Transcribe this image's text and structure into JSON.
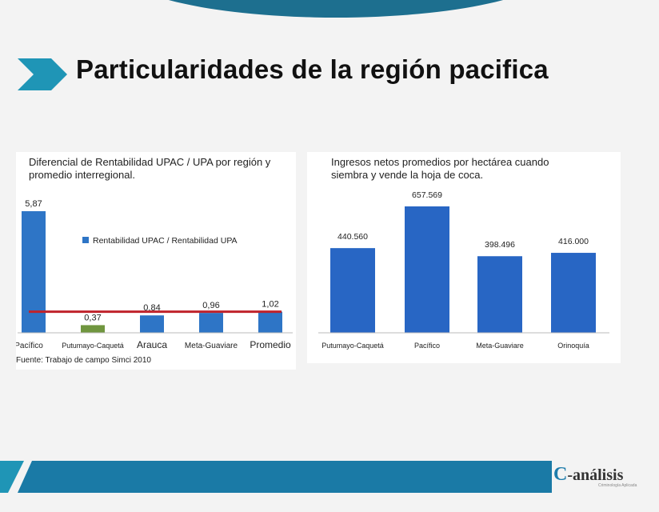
{
  "slide": {
    "title": "Particularidades de la región pacifica",
    "source": "Fuente: Trabajo de campo Simci 2010",
    "logo": {
      "mark": "C",
      "text": "-análisis",
      "subtitle": "Criminología Aplicada"
    },
    "accent_color": "#1d6f8f"
  },
  "chart_data": [
    {
      "type": "bar",
      "title": "Diferencial de Rentabilidad UPAC / UPA por región y promedio interregional.",
      "categories": [
        "Pacífico",
        "Putumayo-Caquetá",
        "Arauca",
        "Meta-Guaviare",
        "Promedio"
      ],
      "series": [
        {
          "name": "Rentabilidad UPAC / Rentabilidad UPA",
          "values": [
            5.87,
            0.37,
            0.84,
            0.96,
            1.02
          ],
          "labels": [
            "5,87",
            "0,37",
            "0,84",
            "0,96",
            "1,02"
          ],
          "colors": [
            "#2e75c6",
            "#70963f",
            "#2e75c6",
            "#2e75c6",
            "#2e75c6"
          ]
        }
      ],
      "reference_line": {
        "value": 1.02,
        "color": "#c0232b"
      },
      "ylim": [
        0,
        6.1
      ],
      "legend_position": "top-right",
      "grid": false
    },
    {
      "type": "bar",
      "title": "Ingresos netos promedios por hectárea cuando siembra y vende la hoja de coca.",
      "categories": [
        "Putumayo-Caquetá",
        "Pacífico",
        "Meta-Guaviare",
        "Orinoquía"
      ],
      "series": [
        {
          "values": [
            440560,
            657569,
            398496,
            416000
          ],
          "labels": [
            "440.560",
            "657.569",
            "398.496",
            "416.000"
          ],
          "color": "#2866c4"
        }
      ],
      "ylim": [
        0,
        690000
      ],
      "grid": false
    }
  ]
}
